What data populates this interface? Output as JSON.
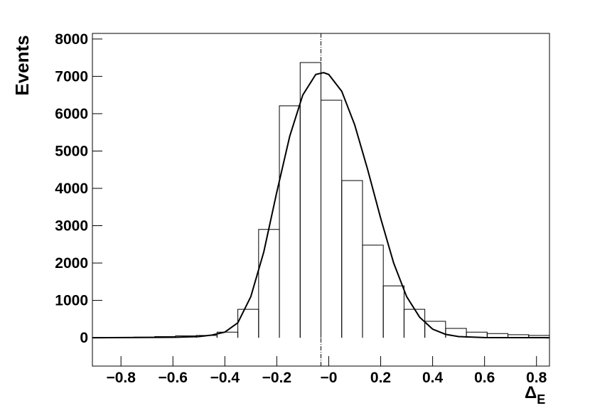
{
  "chart_data": {
    "type": "histogram",
    "ylabel": "Events",
    "xlabel": "Δ",
    "xlabel_subscript": "E",
    "bins": [
      -0.91,
      -0.83,
      -0.75,
      -0.67,
      -0.59,
      -0.51,
      -0.43,
      -0.35,
      -0.27,
      -0.19,
      -0.11,
      -0.03,
      0.05,
      0.13,
      0.21,
      0.29,
      0.37,
      0.45,
      0.53,
      0.61,
      0.69,
      0.77,
      0.85
    ],
    "counts": [
      5,
      10,
      15,
      30,
      50,
      60,
      150,
      760,
      2900,
      6210,
      7370,
      6360,
      4210,
      2480,
      1390,
      760,
      440,
      250,
      150,
      110,
      80,
      60
    ],
    "fit": {
      "x": [
        -0.91,
        -0.6,
        -0.5,
        -0.45,
        -0.4,
        -0.35,
        -0.3,
        -0.25,
        -0.2,
        -0.15,
        -0.1,
        -0.05,
        -0.02,
        0.0,
        0.05,
        0.1,
        0.15,
        0.2,
        0.25,
        0.3,
        0.35,
        0.4,
        0.45,
        0.5,
        0.6,
        0.85
      ],
      "values": [
        0,
        10,
        30,
        70,
        150,
        400,
        1100,
        2300,
        3900,
        5400,
        6500,
        7050,
        7100,
        7050,
        6600,
        5700,
        4500,
        3200,
        2000,
        1100,
        550,
        230,
        90,
        30,
        5,
        0
      ],
      "color": "#000000"
    },
    "marker_x": -0.03,
    "color": "#000000",
    "xlim": [
      -0.91,
      0.85
    ],
    "ylim": [
      -760,
      8150
    ],
    "xticks": [
      {
        "value": -0.8,
        "label": "−0.8"
      },
      {
        "value": -0.6,
        "label": "−0.6"
      },
      {
        "value": -0.4,
        "label": "−0.4"
      },
      {
        "value": -0.2,
        "label": "−0.2"
      },
      {
        "value": 0,
        "label": "−0"
      },
      {
        "value": 0.2,
        "label": "0.2"
      },
      {
        "value": 0.4,
        "label": "0.4"
      },
      {
        "value": 0.6,
        "label": "0.6"
      },
      {
        "value": 0.8,
        "label": "0.8"
      }
    ],
    "yticks": [
      0,
      1000,
      2000,
      3000,
      4000,
      5000,
      6000,
      7000,
      8000
    ]
  }
}
